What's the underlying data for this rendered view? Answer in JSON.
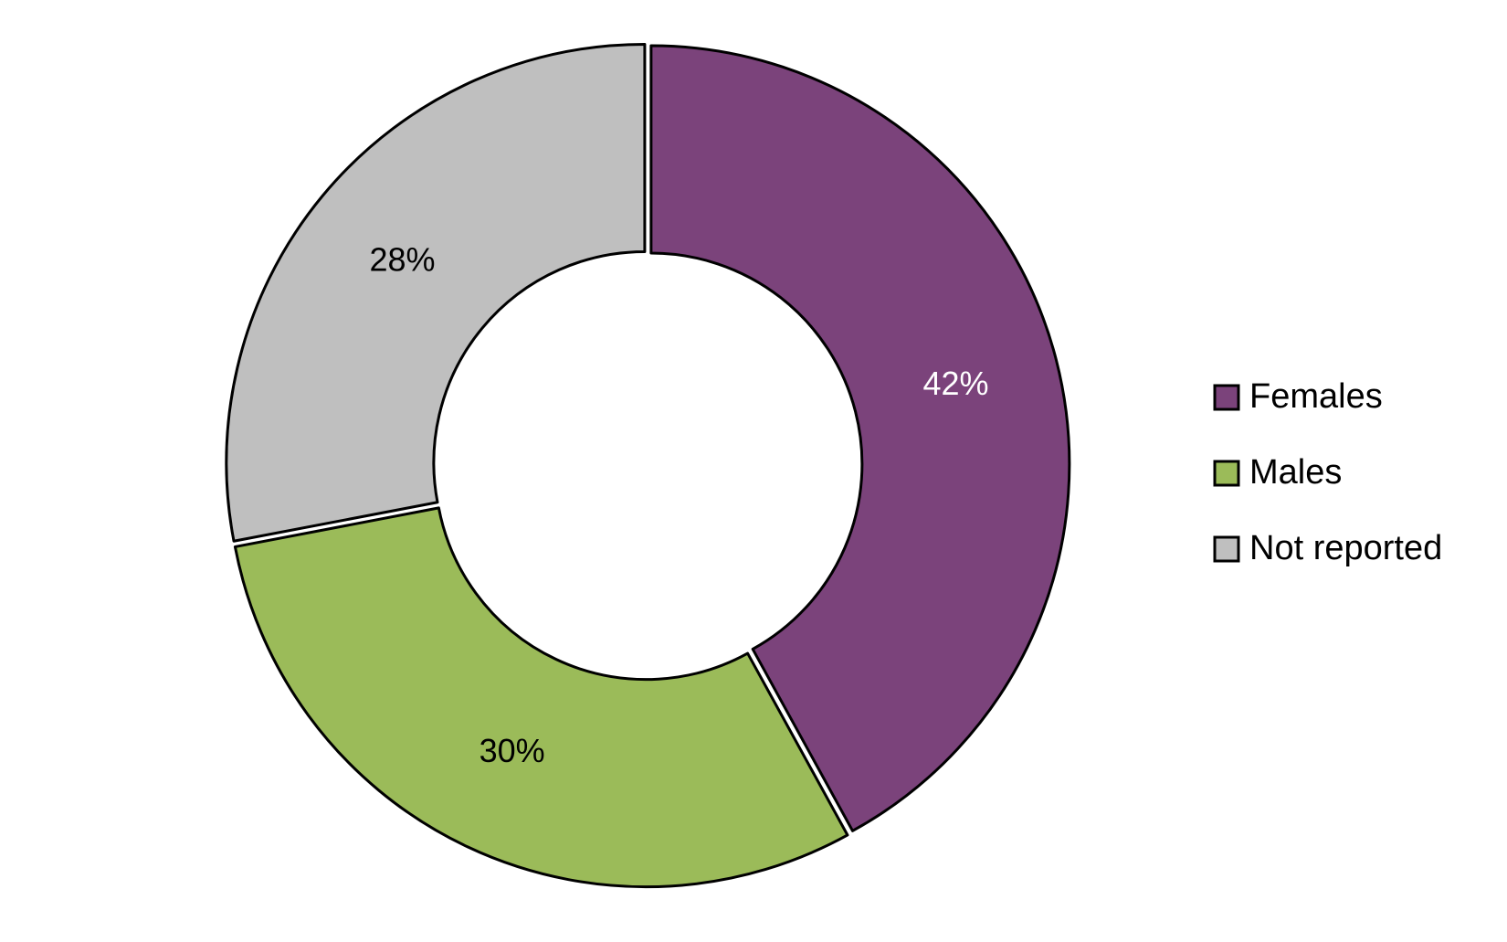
{
  "chart_data": {
    "type": "donut",
    "categories": [
      "Females",
      "Males",
      "Not reported"
    ],
    "values": [
      42,
      30,
      28
    ],
    "value_labels": [
      "42%",
      "30%",
      "28%"
    ],
    "colors": [
      "#7b437b",
      "#9bbb59",
      "#bfbfbf"
    ],
    "label_colors": [
      "#ffffff",
      "#000000",
      "#000000"
    ],
    "legend": "right"
  }
}
